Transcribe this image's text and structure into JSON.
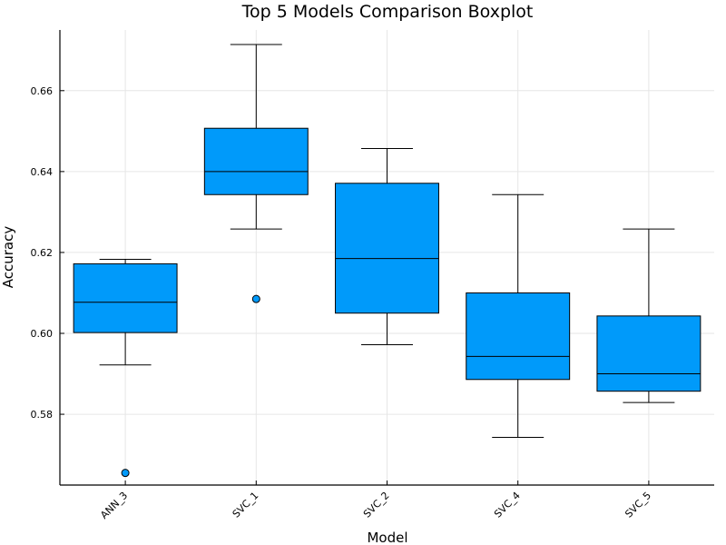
{
  "chart_data": {
    "type": "boxplot",
    "title": "Top 5 Models Comparison Boxplot",
    "xlabel": "Model",
    "ylabel": "Accuracy",
    "ylim": [
      0.5625,
      0.675
    ],
    "yticks": [
      0.58,
      0.6,
      0.62,
      0.64,
      0.66
    ],
    "ytick_labels": [
      "0.58",
      "0.60",
      "0.62",
      "0.64",
      "0.66"
    ],
    "grid": true,
    "box_color": "#009AFA",
    "categories": [
      "ANN_3",
      "SVC_1",
      "SVC_2",
      "SVC_4",
      "SVC_5"
    ],
    "boxes": [
      {
        "label": "ANN_3",
        "whisker_low": 0.5922,
        "q1": 0.6002,
        "median": 0.6077,
        "q3": 0.6172,
        "whisker_high": 0.6183,
        "outliers": [
          0.5655
        ]
      },
      {
        "label": "SVC_1",
        "whisker_low": 0.6258,
        "q1": 0.6343,
        "median": 0.64,
        "q3": 0.6507,
        "whisker_high": 0.6714,
        "outliers": [
          0.6085
        ]
      },
      {
        "label": "SVC_2",
        "whisker_low": 0.5972,
        "q1": 0.605,
        "median": 0.6185,
        "q3": 0.6371,
        "whisker_high": 0.6457,
        "outliers": []
      },
      {
        "label": "SVC_4",
        "whisker_low": 0.5743,
        "q1": 0.5886,
        "median": 0.5943,
        "q3": 0.61,
        "whisker_high": 0.6343,
        "outliers": []
      },
      {
        "label": "SVC_5",
        "whisker_low": 0.5829,
        "q1": 0.5857,
        "median": 0.59,
        "q3": 0.6043,
        "whisker_high": 0.6258,
        "outliers": []
      }
    ]
  }
}
